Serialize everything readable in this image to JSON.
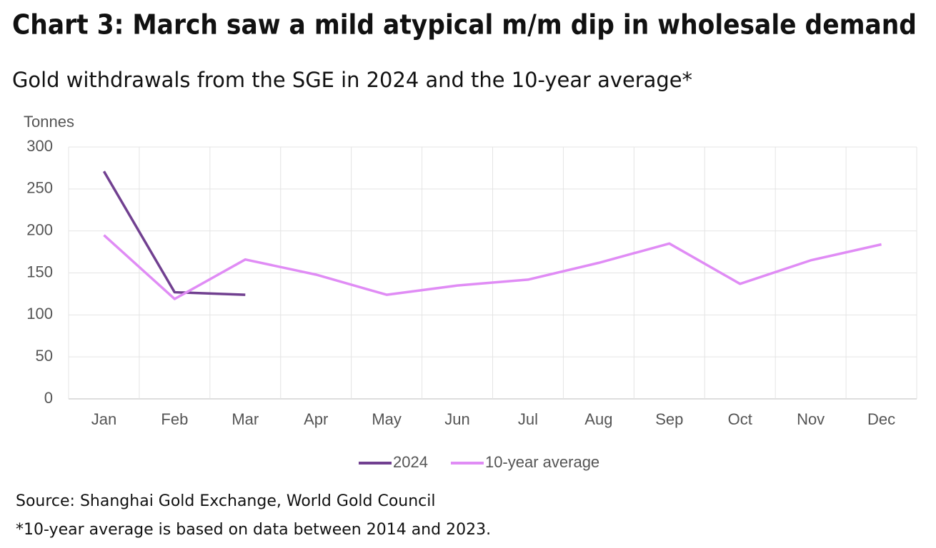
{
  "chart_data": {
    "type": "line",
    "title": "Chart 3: March saw a mild atypical m/m dip in wholesale demand",
    "subtitle": "Gold withdrawals from the SGE in 2024 and the 10-year average*",
    "y_label": "Tonnes",
    "categories": [
      "Jan",
      "Feb",
      "Mar",
      "Apr",
      "May",
      "Jun",
      "Jul",
      "Aug",
      "Sep",
      "Oct",
      "Nov",
      "Dec"
    ],
    "series": [
      {
        "name": "2024",
        "color": "#714090",
        "values": [
          271,
          127,
          124,
          null,
          null,
          null,
          null,
          null,
          null,
          null,
          null,
          null
        ]
      },
      {
        "name": "10-year average",
        "color": "#e08cf5",
        "values": [
          195,
          119,
          166,
          148,
          124,
          135,
          142,
          162,
          185,
          137,
          165,
          184
        ]
      }
    ],
    "ylim": [
      0,
      300
    ],
    "yticks": [
      0,
      50,
      100,
      150,
      200,
      250,
      300
    ],
    "grid": true,
    "legend": "bottom",
    "notes": [
      "Source: Shanghai Gold Exchange, World Gold Council",
      "*10-year average is based on data between 2014 and 2023."
    ]
  }
}
